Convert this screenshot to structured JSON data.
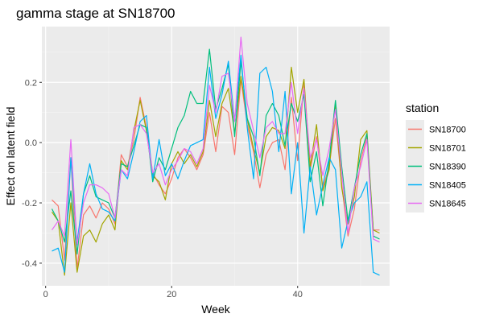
{
  "chart_data": {
    "type": "line",
    "title": "gamma stage at SN18700",
    "xlabel": "Week",
    "ylabel": "Effect on latent field",
    "xlim": [
      -0.6,
      54.6
    ],
    "ylim": [
      -0.475,
      0.385
    ],
    "xticks": [
      0,
      20,
      40
    ],
    "yticks": [
      -0.4,
      -0.2,
      0.0,
      0.2
    ],
    "ytick_labels": [
      "-0.4",
      "-0.2",
      "0.0",
      "0.2"
    ],
    "grid": true,
    "legend": {
      "title": "station",
      "position": "right"
    },
    "x": [
      1,
      2,
      3,
      4,
      5,
      6,
      7,
      8,
      9,
      10,
      11,
      12,
      13,
      14,
      15,
      16,
      17,
      18,
      19,
      20,
      21,
      22,
      23,
      24,
      25,
      26,
      27,
      28,
      29,
      30,
      31,
      32,
      33,
      34,
      35,
      36,
      37,
      38,
      39,
      40,
      41,
      42,
      43,
      44,
      45,
      46,
      47,
      48,
      49,
      50,
      51,
      52,
      53
    ],
    "series": [
      {
        "name": "SN18700",
        "color": "#F8766D",
        "values": [
          -0.19,
          -0.21,
          -0.39,
          -0.05,
          -0.42,
          -0.24,
          -0.21,
          -0.25,
          -0.2,
          -0.22,
          -0.27,
          -0.04,
          -0.08,
          0.01,
          0.15,
          0.05,
          -0.1,
          -0.14,
          -0.17,
          -0.12,
          -0.05,
          -0.02,
          -0.05,
          -0.09,
          -0.04,
          0.1,
          -0.03,
          0.12,
          0.1,
          -0.04,
          0.21,
          0.06,
          -0.03,
          -0.15,
          -0.04,
          0.0,
          0.01,
          -0.09,
          0.15,
          -0.06,
          0.2,
          -0.09,
          0.02,
          -0.15,
          -0.08,
          0.08,
          -0.14,
          -0.31,
          -0.22,
          -0.06,
          0.02,
          -0.29,
          -0.29
        ]
      },
      {
        "name": "SN18701",
        "color": "#A3A500",
        "values": [
          -0.23,
          -0.26,
          -0.44,
          -0.2,
          -0.43,
          -0.31,
          -0.29,
          -0.33,
          -0.27,
          -0.24,
          -0.29,
          -0.06,
          -0.09,
          0.04,
          0.14,
          0.04,
          -0.11,
          -0.13,
          -0.19,
          -0.07,
          -0.03,
          -0.07,
          -0.04,
          -0.08,
          -0.03,
          0.14,
          0.02,
          0.13,
          0.18,
          0.03,
          0.22,
          0.08,
          -0.02,
          -0.1,
          0.02,
          0.05,
          0.04,
          -0.02,
          0.25,
          0.1,
          0.21,
          -0.08,
          0.06,
          -0.16,
          -0.09,
          0.13,
          -0.15,
          -0.27,
          -0.18,
          0.01,
          0.04,
          -0.29,
          -0.3
        ]
      },
      {
        "name": "SN18390",
        "color": "#00BF7D",
        "values": [
          -0.22,
          -0.26,
          -0.33,
          -0.16,
          -0.37,
          -0.17,
          -0.11,
          -0.18,
          -0.19,
          -0.2,
          -0.25,
          -0.07,
          -0.08,
          -0.01,
          0.06,
          0.05,
          -0.13,
          -0.05,
          -0.09,
          -0.02,
          0.05,
          0.09,
          0.17,
          0.13,
          0.13,
          0.31,
          0.11,
          0.18,
          0.26,
          0.02,
          0.27,
          0.08,
          0.02,
          -0.11,
          0.09,
          0.13,
          0.09,
          -0.01,
          0.13,
          0.07,
          0.16,
          -0.13,
          -0.03,
          -0.21,
          -0.06,
          0.14,
          -0.08,
          -0.26,
          -0.15,
          -0.04,
          0.03,
          -0.31,
          -0.32
        ]
      },
      {
        "name": "SN18405",
        "color": "#00B0F6",
        "values": [
          -0.36,
          -0.35,
          -0.43,
          -0.05,
          -0.33,
          -0.17,
          -0.07,
          -0.17,
          -0.22,
          -0.23,
          -0.26,
          -0.09,
          -0.12,
          -0.03,
          0.07,
          0.09,
          -0.12,
          0.01,
          -0.11,
          -0.07,
          -0.12,
          -0.06,
          -0.01,
          0.0,
          0.01,
          0.25,
          0.08,
          0.16,
          0.27,
          0.07,
          0.29,
          0.05,
          -0.12,
          0.23,
          0.25,
          0.17,
          -0.03,
          0.17,
          -0.17,
          0.0,
          -0.3,
          -0.08,
          -0.24,
          -0.14,
          -0.05,
          -0.09,
          -0.35,
          -0.26,
          -0.2,
          -0.18,
          -0.13,
          -0.43,
          -0.44
        ]
      },
      {
        "name": "SN18645",
        "color": "#E76BF3",
        "values": [
          -0.29,
          -0.26,
          -0.31,
          0.01,
          -0.34,
          -0.2,
          -0.14,
          -0.14,
          -0.15,
          -0.17,
          -0.25,
          -0.09,
          -0.11,
          0.05,
          0.06,
          0.03,
          -0.1,
          -0.07,
          -0.14,
          -0.09,
          -0.06,
          -0.02,
          -0.03,
          -0.07,
          -0.02,
          0.19,
          0.1,
          0.22,
          0.23,
          0.07,
          0.35,
          0.13,
          0.04,
          -0.05,
          0.05,
          0.07,
          0.03,
          0.03,
          0.2,
          0.03,
          0.18,
          -0.05,
          0.01,
          -0.11,
          -0.02,
          0.11,
          -0.1,
          -0.3,
          -0.15,
          -0.08,
          0.01,
          -0.32,
          -0.33
        ]
      }
    ]
  }
}
